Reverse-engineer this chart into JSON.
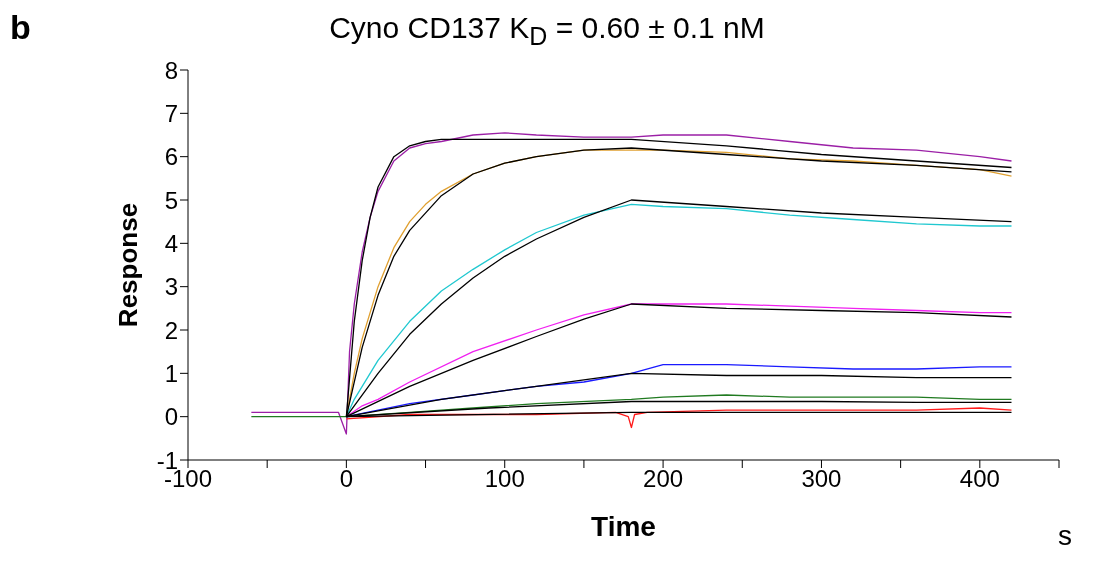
{
  "chart_data": {
    "type": "line",
    "title": "Cyno CD137 K$_{D}$ = 0.60 ± 0.1 nM",
    "xlabel": "Time",
    "ylabel": "Response",
    "annotations": [
      "b",
      "s"
    ],
    "xlim": [
      -100,
      450
    ],
    "xticks": [
      -100,
      {
        "value": -50,
        "label": null
      },
      0,
      {
        "value": 50,
        "label": null
      },
      100,
      {
        "value": 150,
        "label": null
      },
      200,
      {
        "value": 250,
        "label": null
      },
      300,
      {
        "value": 350,
        "label": null
      },
      400,
      {
        "value": 450,
        "label": null
      }
    ],
    "ylim": [
      -1,
      8
    ],
    "yticks": [
      -1,
      0,
      1,
      2,
      3,
      4,
      5,
      6,
      7,
      8
    ],
    "grid": false,
    "marker": "none",
    "line_style": "solid",
    "series": [
      {
        "color": "#9b1fa6",
        "x": [
          -60,
          -40,
          -20,
          -5,
          0,
          2,
          5,
          10,
          15,
          20,
          30,
          40,
          50,
          60,
          80,
          100,
          120,
          150,
          180,
          200,
          240,
          280,
          320,
          360,
          400,
          420
        ],
        "values": [
          0.1,
          0.1,
          0.1,
          0.1,
          -0.4,
          1.5,
          2.6,
          3.8,
          4.6,
          5.2,
          5.9,
          6.2,
          6.3,
          6.35,
          6.5,
          6.55,
          6.5,
          6.45,
          6.45,
          6.5,
          6.5,
          6.35,
          6.2,
          6.15,
          6.0,
          5.9
        ]
      },
      {
        "color": "#e0a030",
        "x": [
          0,
          5,
          10,
          20,
          30,
          40,
          50,
          60,
          80,
          100,
          120,
          150,
          180,
          200,
          240,
          280,
          320,
          360,
          400,
          420
        ],
        "values": [
          0.0,
          1.0,
          1.8,
          3.0,
          3.9,
          4.5,
          4.9,
          5.2,
          5.6,
          5.85,
          6.0,
          6.15,
          6.15,
          6.15,
          6.1,
          5.95,
          5.9,
          5.8,
          5.7,
          5.55
        ]
      },
      {
        "color": "#20c8d0",
        "x": [
          0,
          5,
          10,
          20,
          40,
          60,
          80,
          100,
          120,
          150,
          180,
          200,
          240,
          280,
          320,
          360,
          400,
          420
        ],
        "values": [
          0.0,
          0.4,
          0.7,
          1.3,
          2.2,
          2.9,
          3.4,
          3.85,
          4.25,
          4.65,
          4.9,
          4.85,
          4.8,
          4.65,
          4.55,
          4.45,
          4.4,
          4.4
        ]
      },
      {
        "color": "#f020f0",
        "x": [
          0,
          10,
          20,
          40,
          80,
          120,
          150,
          180,
          200,
          240,
          280,
          320,
          360,
          400,
          420
        ],
        "values": [
          0.0,
          0.25,
          0.4,
          0.8,
          1.5,
          2.0,
          2.35,
          2.6,
          2.6,
          2.6,
          2.55,
          2.5,
          2.45,
          2.4,
          2.4
        ]
      },
      {
        "color": "#1a1aff",
        "x": [
          0,
          20,
          40,
          80,
          120,
          150,
          180,
          200,
          240,
          280,
          320,
          360,
          400,
          420
        ],
        "values": [
          0.0,
          0.15,
          0.3,
          0.5,
          0.7,
          0.8,
          1.0,
          1.2,
          1.2,
          1.15,
          1.1,
          1.1,
          1.15,
          1.15
        ]
      },
      {
        "color": "#207a20",
        "x": [
          -60,
          -40,
          -20,
          -5,
          0,
          40,
          80,
          120,
          180,
          200,
          240,
          280,
          320,
          360,
          400,
          420
        ],
        "values": [
          0.0,
          0.0,
          0.0,
          0.0,
          0.0,
          0.1,
          0.2,
          0.3,
          0.4,
          0.45,
          0.5,
          0.45,
          0.45,
          0.45,
          0.4,
          0.4
        ]
      },
      {
        "color": "#ff1a1a",
        "x": [
          0,
          40,
          80,
          120,
          170,
          178,
          180,
          182,
          190,
          240,
          280,
          320,
          360,
          400,
          420
        ],
        "values": [
          -0.05,
          0.05,
          0.05,
          0.05,
          0.1,
          0.0,
          -0.25,
          0.05,
          0.1,
          0.15,
          0.15,
          0.15,
          0.15,
          0.2,
          0.15
        ]
      },
      {
        "color": "#000000",
        "x": [
          0,
          5,
          10,
          15,
          20,
          30,
          40,
          50,
          60,
          100,
          180,
          240,
          300,
          360,
          420
        ],
        "values": [
          0.0,
          2.2,
          3.6,
          4.6,
          5.3,
          6.0,
          6.25,
          6.35,
          6.4,
          6.4,
          6.4,
          6.25,
          6.05,
          5.9,
          5.75
        ]
      },
      {
        "color": "#000000",
        "x": [
          0,
          10,
          20,
          30,
          40,
          60,
          80,
          100,
          120,
          150,
          180,
          240,
          300,
          360,
          420
        ],
        "values": [
          0.0,
          1.6,
          2.8,
          3.7,
          4.3,
          5.1,
          5.6,
          5.85,
          6.0,
          6.15,
          6.2,
          6.05,
          5.9,
          5.8,
          5.65
        ]
      },
      {
        "color": "#000000",
        "x": [
          0,
          20,
          40,
          60,
          80,
          100,
          120,
          150,
          180,
          240,
          300,
          360,
          420
        ],
        "values": [
          0.0,
          1.0,
          1.9,
          2.6,
          3.2,
          3.7,
          4.1,
          4.6,
          5.0,
          4.85,
          4.7,
          4.6,
          4.5
        ]
      },
      {
        "color": "#000000",
        "x": [
          0,
          40,
          80,
          120,
          150,
          180,
          240,
          300,
          360,
          420
        ],
        "values": [
          0.0,
          0.7,
          1.3,
          1.85,
          2.25,
          2.6,
          2.5,
          2.45,
          2.4,
          2.3
        ]
      },
      {
        "color": "#000000",
        "x": [
          0,
          60,
          120,
          180,
          240,
          300,
          360,
          420
        ],
        "values": [
          0.0,
          0.4,
          0.7,
          1.0,
          0.95,
          0.95,
          0.9,
          0.9
        ]
      },
      {
        "color": "#000000",
        "x": [
          0,
          90,
          180,
          240,
          300,
          360,
          420
        ],
        "values": [
          0.0,
          0.2,
          0.35,
          0.35,
          0.35,
          0.33,
          0.33
        ]
      },
      {
        "color": "#000000",
        "x": [
          0,
          180,
          300,
          420
        ],
        "values": [
          0.0,
          0.1,
          0.1,
          0.1
        ]
      }
    ]
  }
}
